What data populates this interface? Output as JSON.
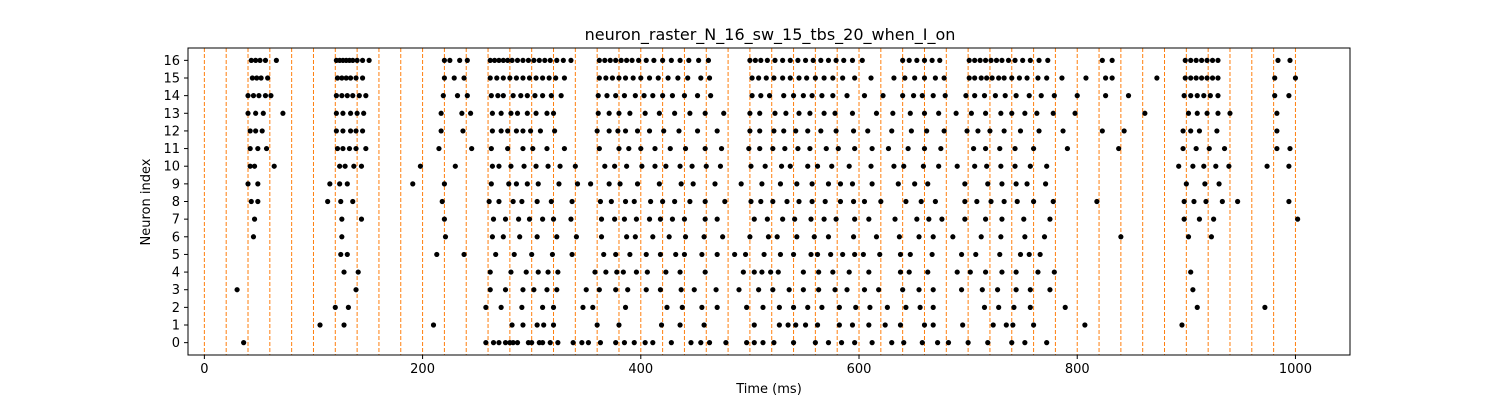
{
  "chart_data": {
    "type": "scatter",
    "title": "neuron_raster_N_16_sw_15_tbs_20_when_I_on",
    "xlabel": "Time (ms)",
    "ylabel": "Neuron index",
    "xlim": [
      -15,
      1050
    ],
    "ylim": [
      -0.7,
      16.7
    ],
    "xticks": [
      0,
      200,
      400,
      600,
      800,
      1000
    ],
    "yticks": [
      0,
      1,
      2,
      3,
      4,
      5,
      6,
      7,
      8,
      9,
      10,
      11,
      12,
      13,
      14,
      15,
      16
    ],
    "grid": false,
    "marker_color": "#000000",
    "vline_color": "#ff7f0e",
    "vline_style": "dashed",
    "vlines": [
      0,
      20,
      40,
      60,
      80,
      100,
      120,
      140,
      160,
      180,
      200,
      220,
      240,
      260,
      280,
      300,
      320,
      340,
      360,
      380,
      400,
      420,
      440,
      460,
      480,
      500,
      520,
      540,
      560,
      580,
      600,
      620,
      640,
      660,
      680,
      700,
      720,
      740,
      760,
      780,
      800,
      820,
      840,
      860,
      880,
      900,
      920,
      940,
      960,
      980,
      1000
    ],
    "spikes": [
      {
        "neuron": 0,
        "times": [
          36,
          258,
          265,
          270,
          276,
          280,
          283,
          287,
          297,
          300,
          307,
          310,
          317,
          324,
          338,
          346,
          352,
          363,
          377,
          385,
          394,
          404,
          411,
          428,
          446,
          455,
          463,
          478,
          497,
          504,
          512,
          522,
          540,
          560,
          572,
          584,
          596,
          612,
          630,
          641,
          658,
          672,
          682,
          700,
          718,
          740,
          752,
          772
        ]
      },
      {
        "neuron": 1,
        "times": [
          106,
          128,
          210,
          282,
          292,
          305,
          311,
          320,
          360,
          380,
          419,
          436,
          458,
          504,
          527,
          535,
          542,
          551,
          562,
          582,
          594,
          609,
          624,
          638,
          660,
          668,
          695,
          723,
          735,
          741,
          760,
          807,
          896
        ]
      },
      {
        "neuron": 2,
        "times": [
          120,
          132,
          258,
          272,
          291,
          310,
          320,
          347,
          356,
          386,
          424,
          438,
          456,
          470,
          497,
          512,
          527,
          540,
          553,
          566,
          582,
          597,
          610,
          626,
          643,
          656,
          668,
          715,
          728,
          742,
          757,
          789,
          910,
          972
        ]
      },
      {
        "neuron": 3,
        "times": [
          30,
          139,
          262,
          276,
          292,
          302,
          314,
          323,
          350,
          362,
          377,
          388,
          405,
          418,
          437,
          449,
          469,
          490,
          508,
          521,
          536,
          549,
          563,
          578,
          589,
          605,
          618,
          640,
          655,
          668,
          694,
          713,
          727,
          744,
          757,
          775,
          906
        ]
      },
      {
        "neuron": 4,
        "times": [
          128,
          141,
          262,
          281,
          295,
          306,
          315,
          324,
          358,
          368,
          378,
          384,
          396,
          406,
          423,
          436,
          459,
          494,
          504,
          511,
          519,
          526,
          549,
          563,
          576,
          591,
          609,
          638,
          646,
          663,
          690,
          702,
          716,
          731,
          744,
          764,
          779,
          904
        ]
      },
      {
        "neuron": 5,
        "times": [
          125,
          131,
          213,
          238,
          267,
          284,
          300,
          319,
          337,
          366,
          377,
          390,
          405,
          418,
          432,
          440,
          456,
          470,
          486,
          496,
          513,
          528,
          540,
          556,
          562,
          574,
          585,
          596,
          604,
          619,
          638,
          647,
          667,
          694,
          707,
          729,
          748,
          756,
          766
        ]
      },
      {
        "neuron": 6,
        "times": [
          45,
          126,
          221,
          264,
          274,
          289,
          305,
          323,
          341,
          364,
          387,
          395,
          411,
          426,
          441,
          458,
          475,
          500,
          517,
          525,
          543,
          559,
          572,
          595,
          616,
          637,
          655,
          668,
          686,
          712,
          730,
          752,
          770,
          840,
          902,
          923
        ]
      },
      {
        "neuron": 7,
        "times": [
          46,
          126,
          144,
          220,
          265,
          276,
          288,
          298,
          310,
          320,
          336,
          364,
          376,
          385,
          396,
          408,
          418,
          429,
          440,
          459,
          470,
          504,
          516,
          530,
          541,
          556,
          568,
          579,
          596,
          609,
          633,
          653,
          664,
          676,
          697,
          716,
          731,
          751,
          775,
          898,
          912,
          925,
          1002
        ]
      },
      {
        "neuron": 8,
        "times": [
          43,
          49,
          113,
          125,
          136,
          218,
          261,
          270,
          283,
          291,
          305,
          318,
          337,
          363,
          373,
          386,
          394,
          409,
          420,
          431,
          445,
          459,
          477,
          501,
          510,
          521,
          534,
          545,
          557,
          569,
          583,
          595,
          605,
          620,
          643,
          657,
          670,
          697,
          708,
          721,
          733,
          745,
          760,
          778,
          818,
          898,
          907,
          918,
          933,
          947,
          994
        ]
      },
      {
        "neuron": 9,
        "times": [
          40,
          49,
          115,
          124,
          131,
          191,
          220,
          263,
          279,
          286,
          296,
          306,
          325,
          342,
          354,
          371,
          381,
          397,
          417,
          437,
          448,
          468,
          492,
          511,
          528,
          543,
          557,
          572,
          583,
          594,
          612,
          636,
          651,
          663,
          697,
          718,
          731,
          744,
          754,
          771,
          900,
          917,
          930
        ]
      },
      {
        "neuron": 10,
        "times": [
          42,
          46,
          64,
          124,
          129,
          137,
          144,
          198,
          230,
          264,
          270,
          281,
          293,
          304,
          315,
          326,
          340,
          367,
          376,
          387,
          401,
          413,
          423,
          436,
          447,
          460,
          473,
          501,
          514,
          529,
          537,
          553,
          562,
          575,
          591,
          611,
          632,
          641,
          659,
          673,
          690,
          706,
          717,
          730,
          743,
          757,
          772,
          893,
          906,
          916,
          927,
          939,
          974,
          994
        ]
      },
      {
        "neuron": 11,
        "times": [
          42,
          49,
          57,
          122,
          127,
          133,
          139,
          148,
          215,
          245,
          263,
          278,
          292,
          301,
          314,
          330,
          362,
          380,
          389,
          400,
          413,
          427,
          441,
          459,
          474,
          499,
          509,
          521,
          532,
          544,
          555,
          570,
          581,
          596,
          612,
          627,
          645,
          660,
          675,
          705,
          716,
          729,
          743,
          760,
          791,
          838,
          897,
          909,
          921,
          935,
          983,
          995
        ]
      },
      {
        "neuron": 12,
        "times": [
          42,
          47,
          53,
          121,
          127,
          134,
          139,
          145,
          217,
          237,
          264,
          272,
          278,
          286,
          292,
          299,
          308,
          321,
          360,
          371,
          379,
          386,
          397,
          408,
          421,
          435,
          452,
          470,
          500,
          509,
          522,
          531,
          542,
          553,
          565,
          579,
          595,
          608,
          630,
          648,
          662,
          678,
          699,
          709,
          720,
          733,
          748,
          765,
          787,
          823,
          843,
          897,
          904,
          912,
          928,
          983
        ]
      },
      {
        "neuron": 13,
        "times": [
          40,
          47,
          54,
          72,
          121,
          127,
          134,
          140,
          146,
          217,
          236,
          244,
          264,
          272,
          281,
          287,
          296,
          304,
          314,
          320,
          361,
          371,
          380,
          390,
          404,
          417,
          431,
          445,
          459,
          476,
          500,
          509,
          523,
          533,
          545,
          555,
          568,
          578,
          594,
          616,
          631,
          647,
          660,
          673,
          689,
          703,
          716,
          730,
          740,
          752,
          763,
          778,
          798,
          862,
          902,
          910,
          919,
          929,
          940,
          983
        ]
      },
      {
        "neuron": 14,
        "times": [
          40,
          45,
          50,
          56,
          61,
          121,
          126,
          131,
          136,
          142,
          148,
          219,
          232,
          241,
          263,
          269,
          274,
          283,
          290,
          296,
          303,
          310,
          318,
          327,
          361,
          369,
          377,
          385,
          395,
          403,
          411,
          420,
          429,
          440,
          452,
          464,
          502,
          510,
          518,
          531,
          540,
          549,
          557,
          566,
          576,
          589,
          605,
          622,
          640,
          650,
          658,
          668,
          679,
          698,
          706,
          715,
          725,
          734,
          744,
          756,
          767,
          779,
          800,
          826,
          847,
          898,
          904,
          910,
          916,
          922,
          929,
          981,
          994
        ]
      },
      {
        "neuron": 15,
        "times": [
          44,
          48,
          52,
          58,
          122,
          126,
          130,
          134,
          139,
          145,
          220,
          229,
          238,
          262,
          268,
          274,
          280,
          286,
          292,
          298,
          304,
          310,
          316,
          322,
          330,
          362,
          368,
          374,
          380,
          386,
          393,
          400,
          408,
          416,
          425,
          434,
          443,
          455,
          463,
          502,
          508,
          515,
          522,
          530,
          537,
          545,
          552,
          560,
          568,
          576,
          585,
          596,
          611,
          632,
          642,
          651,
          660,
          670,
          678,
          701,
          706,
          712,
          717,
          722,
          728,
          733,
          740,
          747,
          754,
          764,
          772,
          786,
          808,
          826,
          832,
          873,
          899,
          904,
          909,
          914,
          919,
          924,
          929,
          981,
          1000
        ]
      },
      {
        "neuron": 16,
        "times": [
          43,
          47,
          51,
          56,
          66,
          121,
          124,
          127,
          130,
          133,
          136,
          140,
          145,
          151,
          220,
          225,
          234,
          241,
          262,
          266,
          270,
          274,
          278,
          282,
          287,
          292,
          297,
          302,
          307,
          312,
          317,
          323,
          329,
          336,
          362,
          367,
          372,
          377,
          382,
          387,
          392,
          398,
          405,
          412,
          420,
          428,
          436,
          444,
          453,
          462,
          500,
          505,
          510,
          516,
          523,
          530,
          537,
          544,
          551,
          558,
          565,
          572,
          579,
          586,
          594,
          603,
          640,
          646,
          653,
          660,
          667,
          674,
          701,
          706,
          711,
          716,
          721,
          726,
          731,
          737,
          743,
          750,
          757,
          765,
          773,
          823,
          832,
          899,
          904,
          909,
          914,
          919,
          924,
          929,
          984,
          995
        ]
      }
    ]
  }
}
